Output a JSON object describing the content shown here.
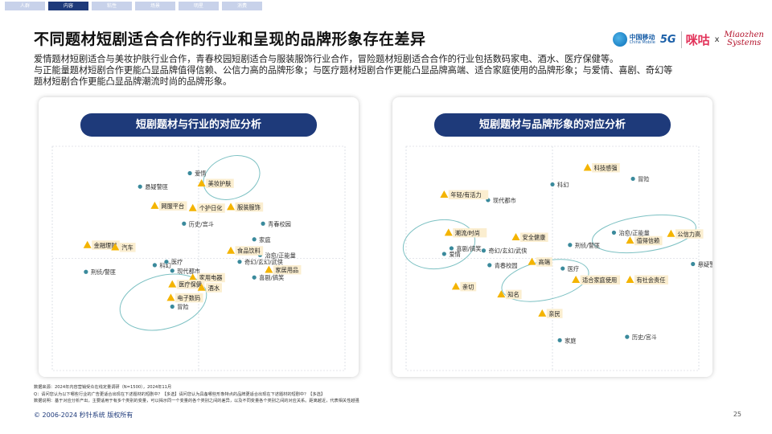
{
  "tabs": [
    {
      "label": "人群",
      "active": false
    },
    {
      "label": "内容",
      "active": true
    },
    {
      "label": "粘性",
      "active": false
    },
    {
      "label": "场景",
      "active": false
    },
    {
      "label": "明星",
      "active": false
    },
    {
      "label": "消费",
      "active": false
    }
  ],
  "title": "不同题材短剧适合合作的行业和呈现的品牌形象存在差异",
  "logos": {
    "china_mobile_cn": "中国移动",
    "china_mobile_en": "China Mobile",
    "fiveg": "5G",
    "migu": "咪咕",
    "x": "x",
    "miaozhen_1": "Miaozhen",
    "miaozhen_2": "Systems"
  },
  "description": [
    "爱情题材短剧适合与美妆护肤行业合作，青春校园短剧适合与服装服饰行业合作，冒险题材短剧适合合作的行业包括数码家电、酒水、医疗保健等。",
    "与正能量题材短剧合作更能凸显品牌值得信赖、公信力高的品牌形象；与医疗题材短剧合作更能凸显品牌高端、适合家庭使用的品牌形象；与爱情、喜剧、奇幻等",
    "题材短剧合作更能凸显品牌潮流时尚的品牌形象。"
  ],
  "colors": {
    "navy": "#1e3a7a",
    "dot": "#3a8a9c",
    "triangle": "#f4b400",
    "label_bg": "#fbeed0",
    "ellipse": "#7dc1c3"
  },
  "chart_data": [
    {
      "type": "scatter",
      "title": "短剧题材与行业的对应分析",
      "xlim": [
        -1,
        1
      ],
      "ylim": [
        -1,
        1
      ],
      "series": [
        {
          "name": "题材",
          "marker": "dot",
          "points": [
            {
              "label": "爱情",
              "x": -0.06,
              "y": 0.76
            },
            {
              "label": "悬疑警匪",
              "x": -0.4,
              "y": 0.64
            },
            {
              "label": "青春校园",
              "x": 0.44,
              "y": 0.31
            },
            {
              "label": "家庭",
              "x": 0.38,
              "y": 0.17
            },
            {
              "label": "历史/宫斗",
              "x": -0.1,
              "y": 0.31
            },
            {
              "label": "治愈/正能量",
              "x": 0.42,
              "y": 0.03
            },
            {
              "label": "奇幻/玄幻/武侠",
              "x": 0.28,
              "y": -0.03
            },
            {
              "label": "科幻",
              "x": -0.3,
              "y": -0.06
            },
            {
              "label": "医疗",
              "x": -0.22,
              "y": -0.03
            },
            {
              "label": "现代都市",
              "x": -0.18,
              "y": -0.11
            },
            {
              "label": "刑侦/警匪",
              "x": -0.77,
              "y": -0.12
            },
            {
              "label": "喜剧/搞笑",
              "x": 0.38,
              "y": -0.17
            },
            {
              "label": "冒险",
              "x": -0.18,
              "y": -0.43
            }
          ]
        },
        {
          "name": "行业",
          "marker": "triangle",
          "points": [
            {
              "label": "美妆护肤",
              "x": 0.02,
              "y": 0.67
            },
            {
              "label": "服装服饰",
              "x": 0.22,
              "y": 0.46
            },
            {
              "label": "网服平台",
              "x": -0.3,
              "y": 0.47
            },
            {
              "label": "个护日化",
              "x": -0.04,
              "y": 0.45
            },
            {
              "label": "金融理财",
              "x": -0.76,
              "y": 0.12
            },
            {
              "label": "汽车",
              "x": -0.57,
              "y": 0.1
            },
            {
              "label": "食品饮料",
              "x": 0.22,
              "y": 0.07
            },
            {
              "label": "家居用品",
              "x": 0.48,
              "y": -0.1
            },
            {
              "label": "家用电器",
              "x": -0.04,
              "y": -0.17
            },
            {
              "label": "医疗保健",
              "x": -0.18,
              "y": -0.23
            },
            {
              "label": "酒水",
              "x": 0.02,
              "y": -0.26
            },
            {
              "label": "电子数码",
              "x": -0.19,
              "y": -0.35
            }
          ]
        }
      ]
    },
    {
      "type": "scatter",
      "title": "短剧题材与品牌形象的对应分析",
      "xlim": [
        -1,
        1
      ],
      "ylim": [
        -1,
        1
      ],
      "series": [
        {
          "name": "题材",
          "marker": "dot",
          "points": [
            {
              "label": "冒险",
              "x": 0.55,
              "y": 0.71
            },
            {
              "label": "科幻",
              "x": 0.0,
              "y": 0.66
            },
            {
              "label": "现代都市",
              "x": -0.44,
              "y": 0.52
            },
            {
              "label": "治愈/正能量",
              "x": 0.42,
              "y": 0.23
            },
            {
              "label": "刑侦/警匪",
              "x": 0.12,
              "y": 0.12
            },
            {
              "label": "喜剧/搞笑",
              "x": -0.69,
              "y": 0.09
            },
            {
              "label": "奇幻/玄幻/武侠",
              "x": -0.47,
              "y": 0.07
            },
            {
              "label": "爱情",
              "x": -0.74,
              "y": 0.04
            },
            {
              "label": "悬疑警匪",
              "x": 0.96,
              "y": -0.05
            },
            {
              "label": "青春校园",
              "x": -0.43,
              "y": -0.06
            },
            {
              "label": "医疗",
              "x": 0.07,
              "y": -0.09
            },
            {
              "label": "家庭",
              "x": 0.05,
              "y": -0.73
            },
            {
              "label": "历史/宫斗",
              "x": 0.51,
              "y": -0.7
            }
          ]
        },
        {
          "name": "品牌形象",
          "marker": "triangle",
          "points": [
            {
              "label": "科技感强",
              "x": 0.24,
              "y": 0.81
            },
            {
              "label": "年轻/有活力",
              "x": -0.74,
              "y": 0.57
            },
            {
              "label": "潮流/时尚",
              "x": -0.71,
              "y": 0.23
            },
            {
              "label": "安全健康",
              "x": -0.25,
              "y": 0.19
            },
            {
              "label": "公信力高",
              "x": 0.81,
              "y": 0.22
            },
            {
              "label": "值得信赖",
              "x": 0.53,
              "y": 0.16
            },
            {
              "label": "高端",
              "x": -0.14,
              "y": -0.03
            },
            {
              "label": "适合家庭使用",
              "x": 0.16,
              "y": -0.19
            },
            {
              "label": "有社会责任",
              "x": 0.53,
              "y": -0.19
            },
            {
              "label": "亲切",
              "x": -0.66,
              "y": -0.25
            },
            {
              "label": "知名",
              "x": -0.35,
              "y": -0.32
            },
            {
              "label": "亲民",
              "x": -0.07,
              "y": -0.49
            }
          ]
        }
      ]
    }
  ],
  "footnotes": [
    "数据来源：2024年内容营销受众在线定量调研（N=1500），2024年11月",
    "Q：请问您认为以下哪些行业的广告更适合出现在下述题材的短剧中？【多选】请问您认为具备哪些形象特点的品牌更适合出现在下述题材的短剧中？【多选】",
    "数据说明：基于对应分析产出，主要适用于有多个类别的变量，可以揭示同一个变量的各个类别之间的差异，以及不同变量各个类别之间的对应关系。距离越近，代表相关性越强"
  ],
  "copyright": "© 2006-2024 秒针系统 版权所有",
  "page_number": "25"
}
